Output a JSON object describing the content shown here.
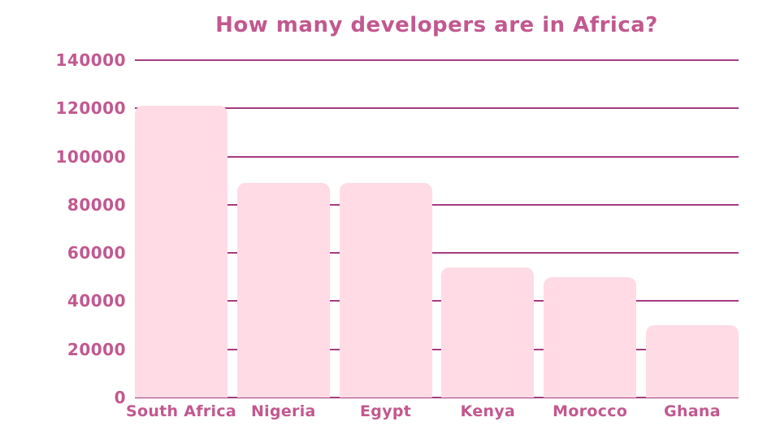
{
  "chart_data": {
    "type": "bar",
    "title": "How many developers are in Africa?",
    "categories": [
      "South Africa",
      "Nigeria",
      "Egypt",
      "Kenya",
      "Morocco",
      "Ghana"
    ],
    "values": [
      121000,
      89000,
      89000,
      54000,
      50000,
      30000
    ],
    "xlabel": "",
    "ylabel": "",
    "ylim": [
      0,
      140000
    ],
    "ytick_step": 20000,
    "ytick_labels": [
      "0",
      "20000",
      "40000",
      "60000",
      "80000",
      "100000",
      "120000",
      "140000"
    ],
    "grid": "horizontal",
    "legend_position": "none",
    "colors": {
      "bar_fill": "#ffdbe6",
      "gridline": "#a63c80",
      "text": "#c2588f",
      "background": "#ffffff"
    }
  }
}
